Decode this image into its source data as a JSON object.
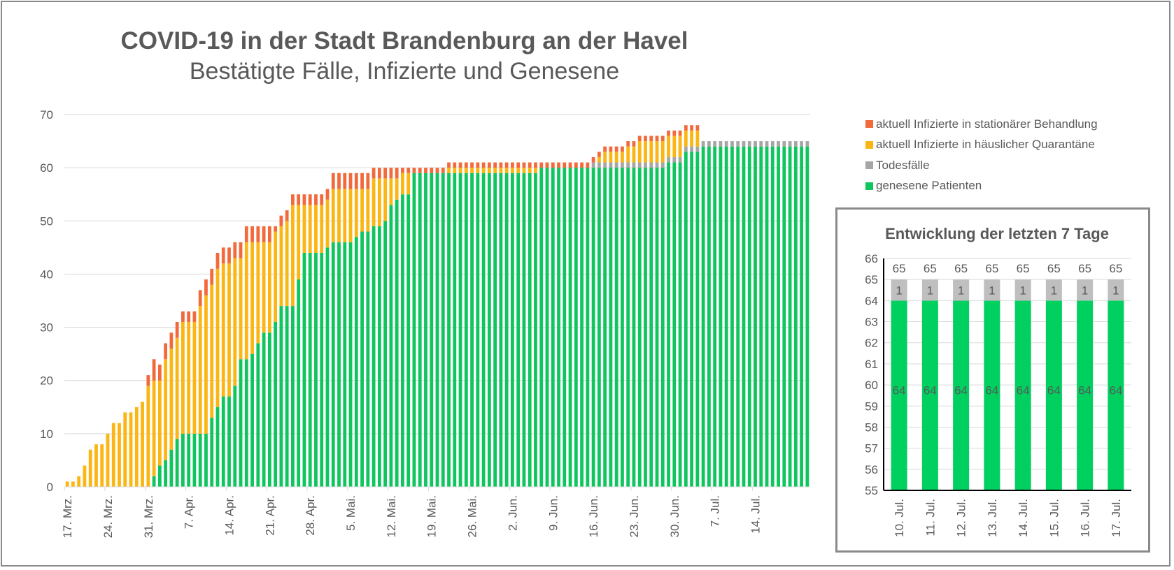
{
  "colors": {
    "stationaer": "#f26a3c",
    "quarantaene": "#fbb614",
    "todesfaelle": "#a6a6a6",
    "genesen": "#0ec55e",
    "inset_genesen": "#00d060",
    "inset_todesfaelle": "#bfbfbf",
    "grid": "#d9d9d9",
    "text": "#595959"
  },
  "chart_data": [
    {
      "type": "bar",
      "stacked": true,
      "title": "COVID-19 in der Stadt Brandenburg an der Havel",
      "subtitle": "Bestätigte Fälle, Infizierte und Genesene",
      "xlabel": "",
      "ylabel": "",
      "ylim": [
        0,
        70
      ],
      "yticks": [
        0,
        10,
        20,
        30,
        40,
        50,
        60,
        70
      ],
      "grid": true,
      "legend_position": "right",
      "x_start": "17. Mrz.",
      "x_tick_labels": [
        "17. Mrz.",
        "24. Mrz.",
        "31. Mrz.",
        "7. Apr.",
        "14. Apr.",
        "21. Apr.",
        "28. Apr.",
        "5. Mai.",
        "12. Mai.",
        "19. Mai.",
        "26. Mai.",
        "2. Jun.",
        "9. Jun.",
        "16. Jun.",
        "23. Jun.",
        "30. Jun.",
        "7. Jul.",
        "14. Jul."
      ],
      "x_tick_interval_days": 7,
      "series": [
        {
          "name": "genesene Patienten",
          "color_key": "genesen",
          "values": [
            0,
            0,
            0,
            0,
            0,
            0,
            0,
            0,
            0,
            0,
            0,
            0,
            0,
            0,
            0,
            2,
            4,
            5,
            7,
            9,
            10,
            10,
            10,
            10,
            10,
            13,
            15,
            17,
            17,
            19,
            24,
            24,
            25,
            27,
            29,
            29,
            31,
            34,
            34,
            34,
            39,
            44,
            44,
            44,
            44,
            45,
            46,
            46,
            46,
            46,
            47,
            48,
            48,
            49,
            49,
            50,
            53,
            54,
            55,
            55,
            59,
            59,
            59,
            59,
            59,
            59,
            59,
            59,
            59,
            59,
            59,
            59,
            59,
            59,
            59,
            59,
            59,
            59,
            59,
            59,
            59,
            59,
            60,
            60,
            60,
            60,
            60,
            60,
            60,
            60,
            60,
            60,
            60,
            60,
            60,
            60,
            60,
            60,
            60,
            60,
            60,
            60,
            60,
            60,
            61,
            61,
            61,
            63,
            63,
            63,
            64,
            64,
            64,
            64,
            64,
            64,
            64,
            64,
            64,
            64,
            64,
            64,
            64,
            64,
            64,
            64,
            64,
            64,
            64
          ]
        },
        {
          "name": "Todesfälle",
          "color_key": "todesfaelle",
          "values": [
            0,
            0,
            0,
            0,
            0,
            0,
            0,
            0,
            0,
            0,
            0,
            0,
            0,
            0,
            0,
            0,
            0,
            0,
            0,
            0,
            0,
            0,
            0,
            0,
            0,
            0,
            0,
            0,
            0,
            0,
            0,
            0,
            0,
            0,
            0,
            0,
            0,
            0,
            0,
            0,
            0,
            0,
            0,
            0,
            0,
            0,
            0,
            0,
            0,
            0,
            0,
            0,
            0,
            0,
            0,
            0,
            0,
            0,
            0,
            0,
            0,
            0,
            0,
            0,
            0,
            0,
            0,
            0,
            0,
            0,
            0,
            0,
            0,
            0,
            0,
            0,
            0,
            0,
            0,
            0,
            0,
            0,
            0,
            0,
            0,
            0,
            0,
            0,
            0,
            0,
            0,
            1,
            1,
            1,
            1,
            1,
            1,
            1,
            1,
            1,
            1,
            1,
            1,
            1,
            1,
            1,
            1,
            1,
            1,
            1,
            1,
            1,
            1,
            1,
            1,
            1,
            1,
            1,
            1,
            1,
            1,
            1,
            1,
            1,
            1,
            1,
            1,
            1,
            1
          ]
        },
        {
          "name": "aktuell Infizierte in häuslicher Quarantäne",
          "color_key": "quarantaene",
          "values": [
            1,
            1,
            2,
            4,
            7,
            8,
            8,
            10,
            12,
            12,
            14,
            14,
            15,
            16,
            19,
            18,
            16,
            19,
            19,
            19,
            21,
            21,
            21,
            24,
            26,
            25,
            26,
            25,
            25,
            24,
            19,
            22,
            21,
            19,
            17,
            17,
            17,
            15,
            16,
            19,
            14,
            9,
            9,
            9,
            9,
            9,
            10,
            10,
            10,
            10,
            9,
            8,
            8,
            9,
            9,
            8,
            5,
            4,
            4,
            4,
            0,
            0,
            0,
            0,
            0,
            0,
            1,
            1,
            1,
            1,
            1,
            1,
            1,
            1,
            1,
            1,
            1,
            1,
            1,
            1,
            1,
            1,
            0,
            0,
            0,
            0,
            0,
            0,
            0,
            0,
            0,
            0,
            1,
            2,
            2,
            2,
            2,
            3,
            3,
            4,
            4,
            4,
            4,
            4,
            4,
            4,
            4,
            3,
            3,
            3,
            0,
            0,
            0,
            0,
            0,
            0,
            0,
            0,
            0,
            0,
            0,
            0,
            0,
            0,
            0,
            0,
            0,
            0,
            0
          ]
        },
        {
          "name": "aktuell Infizierte in stationärer Behandlung",
          "color_key": "stationaer",
          "values": [
            0,
            0,
            0,
            0,
            0,
            0,
            0,
            0,
            0,
            0,
            0,
            0,
            0,
            0,
            2,
            4,
            3,
            3,
            3,
            3,
            2,
            2,
            2,
            3,
            3,
            3,
            3,
            3,
            3,
            3,
            3,
            3,
            3,
            3,
            3,
            3,
            1,
            2,
            2,
            2,
            2,
            2,
            2,
            2,
            2,
            2,
            3,
            3,
            3,
            3,
            3,
            3,
            3,
            2,
            2,
            2,
            2,
            2,
            1,
            1,
            1,
            1,
            1,
            1,
            1,
            1,
            1,
            1,
            1,
            1,
            1,
            1,
            1,
            1,
            1,
            1,
            1,
            1,
            1,
            1,
            1,
            1,
            1,
            1,
            1,
            1,
            1,
            1,
            1,
            1,
            1,
            1,
            1,
            1,
            1,
            1,
            1,
            1,
            1,
            1,
            1,
            1,
            1,
            1,
            1,
            1,
            1,
            1,
            1,
            1,
            0,
            0,
            0,
            0,
            0,
            0,
            0,
            0,
            0,
            0,
            0,
            0,
            0,
            0,
            0,
            0,
            0,
            0,
            0
          ]
        }
      ]
    },
    {
      "type": "bar",
      "stacked": true,
      "title": "Entwicklung der letzten 7 Tage",
      "xlabel": "",
      "ylabel": "",
      "ylim": [
        55,
        66
      ],
      "yticks": [
        55,
        56,
        57,
        58,
        59,
        60,
        61,
        62,
        63,
        64,
        65,
        66
      ],
      "grid": true,
      "categories": [
        "10. Jul.",
        "11. Jul.",
        "12. Jul.",
        "13. Jul.",
        "14. Jul.",
        "15. Jul.",
        "16. Jul.",
        "17. Jul."
      ],
      "series": [
        {
          "name": "genesene Patienten",
          "color_key": "inset_genesen",
          "values": [
            64,
            64,
            64,
            64,
            64,
            64,
            64,
            64
          ]
        },
        {
          "name": "Todesfälle",
          "color_key": "inset_todesfaelle",
          "values": [
            1,
            1,
            1,
            1,
            1,
            1,
            1,
            1
          ]
        }
      ],
      "totals": [
        65,
        65,
        65,
        65,
        65,
        65,
        65,
        65
      ]
    }
  ],
  "legend": [
    {
      "label": "aktuell Infizierte in stationärer Behandlung",
      "color_key": "stationaer"
    },
    {
      "label": "aktuell Infizierte in häuslicher Quarantäne",
      "color_key": "quarantaene"
    },
    {
      "label": "Todesfälle",
      "color_key": "todesfaelle"
    },
    {
      "label": "genesene Patienten",
      "color_key": "genesen"
    }
  ]
}
